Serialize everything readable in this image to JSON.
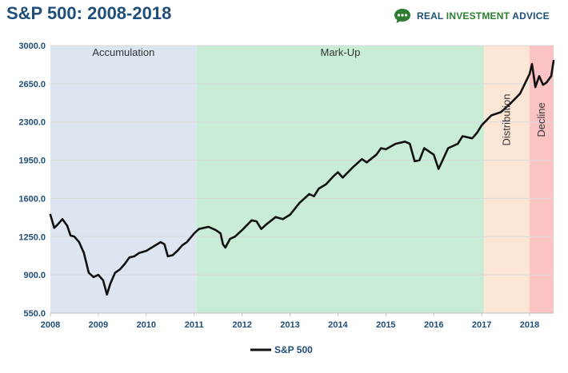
{
  "header": {
    "title": "S&P 500: 2008-2018"
  },
  "brand": {
    "name_primary": "REAL ",
    "name_accent": "INVESTMENT",
    "name_rest": " ADVICE",
    "logo_icon": "speech-bubble-dots-icon",
    "logo_color": "#2e7d32"
  },
  "colors": {
    "line": "#111111",
    "axis_text": "#1f4e79"
  },
  "chart_data": {
    "type": "line",
    "title": "S&P 500: 2008-2018",
    "xlabel": "",
    "ylabel": "",
    "ylim": [
      550,
      3000
    ],
    "xlim": [
      2008.0,
      2018.5
    ],
    "y_ticks": [
      550,
      900,
      1250,
      1600,
      1950,
      2300,
      2650,
      3000
    ],
    "y_tick_labels": [
      "550.0",
      "900.0",
      "1250.0",
      "1600.0",
      "1950.0",
      "2300.0",
      "2650.0",
      "3000.0"
    ],
    "x_ticks": [
      2008,
      2009,
      2010,
      2011,
      2012,
      2013,
      2014,
      2015,
      2016,
      2017,
      2018
    ],
    "x_tick_labels": [
      "2008",
      "2009",
      "2010",
      "2011",
      "2012",
      "2013",
      "2014",
      "2015",
      "2016",
      "2017",
      "2018"
    ],
    "grid": true,
    "legend_position": "bottom-center",
    "series": [
      {
        "name": "S&P 500",
        "color": "#111111",
        "x": [
          2008.0,
          2008.04,
          2008.08,
          2008.15,
          2008.25,
          2008.35,
          2008.42,
          2008.5,
          2008.6,
          2008.7,
          2008.8,
          2008.9,
          2009.0,
          2009.1,
          2009.18,
          2009.25,
          2009.35,
          2009.45,
          2009.55,
          2009.65,
          2009.75,
          2009.85,
          2010.0,
          2010.15,
          2010.3,
          2010.38,
          2010.45,
          2010.55,
          2010.65,
          2010.75,
          2010.85,
          2011.0,
          2011.1,
          2011.2,
          2011.3,
          2011.45,
          2011.55,
          2011.6,
          2011.65,
          2011.75,
          2011.85,
          2012.0,
          2012.2,
          2012.3,
          2012.4,
          2012.5,
          2012.7,
          2012.85,
          2013.0,
          2013.2,
          2013.4,
          2013.5,
          2013.6,
          2013.75,
          2013.9,
          2014.0,
          2014.1,
          2014.3,
          2014.5,
          2014.6,
          2014.8,
          2014.9,
          2015.0,
          2015.2,
          2015.4,
          2015.5,
          2015.6,
          2015.7,
          2015.8,
          2016.0,
          2016.1,
          2016.3,
          2016.5,
          2016.6,
          2016.8,
          2016.9,
          2017.0,
          2017.2,
          2017.4,
          2017.6,
          2017.8,
          2018.0,
          2018.05,
          2018.12,
          2018.2,
          2018.28,
          2018.35,
          2018.45,
          2018.5
        ],
        "values": [
          1450,
          1390,
          1330,
          1360,
          1410,
          1350,
          1260,
          1250,
          1200,
          1100,
          920,
          880,
          900,
          850,
          720,
          820,
          920,
          950,
          1000,
          1060,
          1070,
          1100,
          1120,
          1160,
          1200,
          1180,
          1070,
          1080,
          1120,
          1170,
          1200,
          1280,
          1320,
          1330,
          1340,
          1310,
          1280,
          1180,
          1150,
          1230,
          1250,
          1310,
          1400,
          1390,
          1320,
          1360,
          1430,
          1410,
          1450,
          1560,
          1640,
          1620,
          1690,
          1730,
          1800,
          1840,
          1790,
          1880,
          1960,
          1930,
          2000,
          2060,
          2050,
          2100,
          2120,
          2100,
          1940,
          1950,
          2060,
          2000,
          1870,
          2060,
          2100,
          2170,
          2150,
          2200,
          2270,
          2360,
          2390,
          2470,
          2560,
          2740,
          2830,
          2620,
          2720,
          2640,
          2660,
          2720,
          2860
        ],
        "_note_values": ""
      }
    ],
    "zones": [
      {
        "label": "Accumulation",
        "x_start": 2008.0,
        "x_end": 2011.05,
        "color": "#dce5f0",
        "label_orientation": "horizontal"
      },
      {
        "label": "Mark-Up",
        "x_start": 2011.05,
        "x_end": 2017.05,
        "color": "#c9ecd6",
        "label_orientation": "horizontal"
      },
      {
        "label": "Distribution",
        "x_start": 2017.05,
        "x_end": 2018.0,
        "color": "#fde6d6",
        "label_orientation": "vertical"
      },
      {
        "label": "Decline",
        "x_start": 2018.0,
        "x_end": 2018.5,
        "color": "#fbc4c4",
        "label_orientation": "vertical"
      }
    ]
  },
  "legend": {
    "label": "S&P 500"
  }
}
